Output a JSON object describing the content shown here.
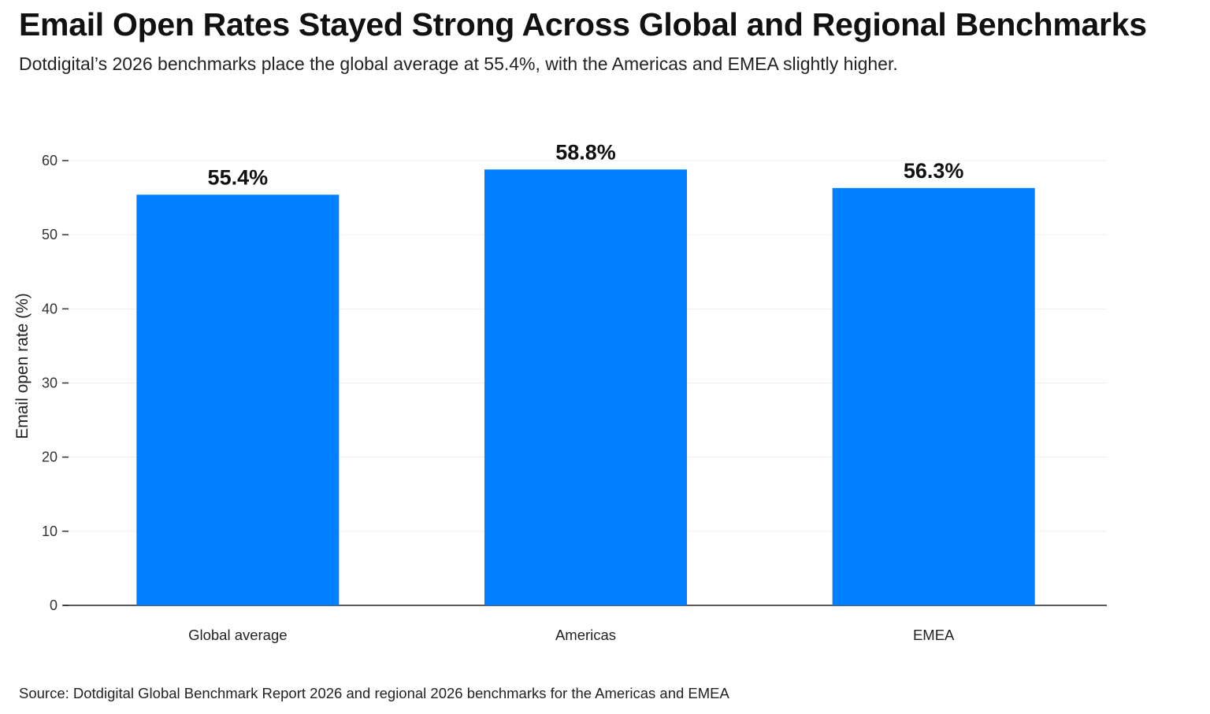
{
  "title": "Email Open Rates Stayed Strong Across Global and Regional Benchmarks",
  "subtitle": "Dotdigital’s 2026 benchmarks place the global average at 55.4%, with the Americas and EMEA slightly higher.",
  "source": "Source: Dotdigital Global Benchmark Report 2026 and regional 2026 benchmarks for the Americas and EMEA",
  "chart_data": {
    "type": "bar",
    "categories": [
      "Global average",
      "Americas",
      "EMEA"
    ],
    "values": [
      55.4,
      58.8,
      56.3
    ],
    "data_labels": [
      "55.4%",
      "58.8%",
      "56.3%"
    ],
    "xlabel": "",
    "ylabel": "Email open rate (%)",
    "ylim": [
      0,
      60
    ],
    "yticks": [
      0,
      10,
      20,
      30,
      40,
      50,
      60
    ],
    "grid": true,
    "bar_color": "#007FFF"
  }
}
